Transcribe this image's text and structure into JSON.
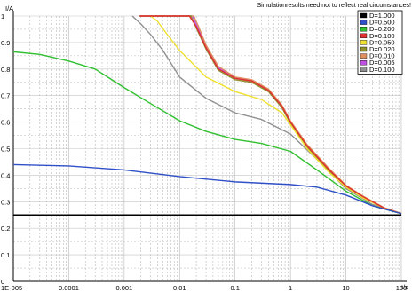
{
  "chart_data": {
    "type": "line",
    "ylabel": "I/A",
    "xlabel": "t/s",
    "note": "Simulationresults need not to reflect real circumstances!",
    "x_scale": "log",
    "xlim": [
      1e-05,
      100
    ],
    "ylim": [
      0,
      1
    ],
    "grid": true,
    "legend_position": "top-right",
    "x_tick_labels": [
      "1E-005",
      "0.0001",
      "0.001",
      "0.01",
      "0.1",
      "1",
      "10",
      "100"
    ],
    "y_tick_labels": [
      "0",
      "0.1",
      "0.2",
      "0.3",
      "0.4",
      "0.5",
      "0.6",
      "0.7",
      "0.8",
      "0.9",
      "1"
    ],
    "hline": {
      "y": 0.25,
      "color": "#000000"
    },
    "series": [
      {
        "name": "D=1.000",
        "color": "#000000",
        "points": [
          [
            1e-05,
            0.25
          ],
          [
            100,
            0.25
          ]
        ]
      },
      {
        "name": "D=0.500",
        "color": "#3050c8",
        "points": [
          [
            1e-05,
            0.44
          ],
          [
            0.0001,
            0.435
          ],
          [
            0.001,
            0.42
          ],
          [
            0.01,
            0.395
          ],
          [
            0.1,
            0.375
          ],
          [
            1,
            0.365
          ],
          [
            3,
            0.355
          ],
          [
            10,
            0.325
          ],
          [
            30,
            0.285
          ],
          [
            100,
            0.255
          ]
        ]
      },
      {
        "name": "D=0.200",
        "color": "#30c030",
        "points": [
          [
            1e-05,
            0.865
          ],
          [
            3e-05,
            0.855
          ],
          [
            0.0001,
            0.83
          ],
          [
            0.0003,
            0.8
          ],
          [
            0.001,
            0.73
          ],
          [
            0.003,
            0.67
          ],
          [
            0.01,
            0.605
          ],
          [
            0.03,
            0.565
          ],
          [
            0.1,
            0.535
          ],
          [
            0.3,
            0.52
          ],
          [
            1,
            0.49
          ],
          [
            3,
            0.42
          ],
          [
            10,
            0.34
          ],
          [
            30,
            0.285
          ],
          [
            100,
            0.255
          ]
        ]
      },
      {
        "name": "D=0.100",
        "color": "#e03030",
        "points": [
          [
            0.0019,
            1.0
          ],
          [
            0.015,
            1.0
          ],
          [
            0.02,
            0.96
          ],
          [
            0.03,
            0.88
          ],
          [
            0.05,
            0.8
          ],
          [
            0.1,
            0.765
          ],
          [
            0.2,
            0.755
          ],
          [
            0.4,
            0.72
          ],
          [
            0.7,
            0.66
          ],
          [
            1,
            0.6
          ],
          [
            2,
            0.51
          ],
          [
            5,
            0.42
          ],
          [
            10,
            0.36
          ],
          [
            20,
            0.32
          ],
          [
            50,
            0.275
          ],
          [
            100,
            0.255
          ]
        ]
      },
      {
        "name": "D=0.050",
        "color": "#f0e030",
        "points": [
          [
            0.003,
            1.0
          ],
          [
            0.004,
            0.98
          ],
          [
            0.006,
            0.93
          ],
          [
            0.01,
            0.87
          ],
          [
            0.03,
            0.77
          ],
          [
            0.1,
            0.715
          ],
          [
            0.3,
            0.685
          ],
          [
            0.7,
            0.635
          ],
          [
            1,
            0.59
          ],
          [
            2,
            0.5
          ],
          [
            5,
            0.41
          ],
          [
            10,
            0.355
          ],
          [
            20,
            0.315
          ],
          [
            50,
            0.275
          ],
          [
            100,
            0.255
          ]
        ]
      },
      {
        "name": "D=0.020",
        "color": "#909030",
        "points": [
          [
            0.0019,
            1.0
          ],
          [
            0.016,
            1.0
          ],
          [
            0.02,
            0.955
          ],
          [
            0.03,
            0.875
          ],
          [
            0.05,
            0.795
          ],
          [
            0.1,
            0.76
          ],
          [
            0.2,
            0.75
          ],
          [
            0.4,
            0.715
          ],
          [
            0.7,
            0.655
          ],
          [
            1,
            0.595
          ],
          [
            2,
            0.505
          ],
          [
            5,
            0.415
          ],
          [
            10,
            0.355
          ],
          [
            20,
            0.318
          ],
          [
            50,
            0.273
          ],
          [
            100,
            0.255
          ]
        ]
      },
      {
        "name": "D=0.010",
        "color": "#e09060",
        "points": [
          [
            0.0019,
            1.0
          ],
          [
            0.018,
            1.0
          ],
          [
            0.022,
            0.96
          ],
          [
            0.03,
            0.89
          ],
          [
            0.05,
            0.81
          ],
          [
            0.1,
            0.77
          ],
          [
            0.2,
            0.76
          ],
          [
            0.4,
            0.725
          ],
          [
            0.7,
            0.665
          ],
          [
            1,
            0.605
          ],
          [
            2,
            0.515
          ],
          [
            5,
            0.425
          ],
          [
            10,
            0.362
          ],
          [
            20,
            0.322
          ],
          [
            50,
            0.277
          ],
          [
            100,
            0.256
          ]
        ]
      },
      {
        "name": "D=0.005",
        "color": "#c050e0",
        "points": [
          [
            0.0019,
            1.0
          ],
          [
            0.017,
            1.0
          ],
          [
            0.021,
            0.958
          ],
          [
            0.03,
            0.885
          ],
          [
            0.05,
            0.805
          ],
          [
            0.1,
            0.767
          ],
          [
            0.2,
            0.757
          ],
          [
            0.4,
            0.722
          ],
          [
            0.7,
            0.662
          ],
          [
            1,
            0.602
          ],
          [
            2,
            0.512
          ],
          [
            5,
            0.422
          ],
          [
            10,
            0.36
          ],
          [
            20,
            0.32
          ],
          [
            50,
            0.276
          ],
          [
            100,
            0.256
          ]
        ]
      },
      {
        "name": "D=0.100",
        "color": "#909090",
        "points": [
          [
            0.0014,
            1.0
          ],
          [
            0.002,
            0.97
          ],
          [
            0.003,
            0.93
          ],
          [
            0.005,
            0.87
          ],
          [
            0.01,
            0.77
          ],
          [
            0.03,
            0.69
          ],
          [
            0.1,
            0.635
          ],
          [
            0.3,
            0.61
          ],
          [
            1,
            0.555
          ],
          [
            3,
            0.46
          ],
          [
            10,
            0.35
          ],
          [
            30,
            0.29
          ],
          [
            100,
            0.255
          ]
        ]
      }
    ]
  }
}
